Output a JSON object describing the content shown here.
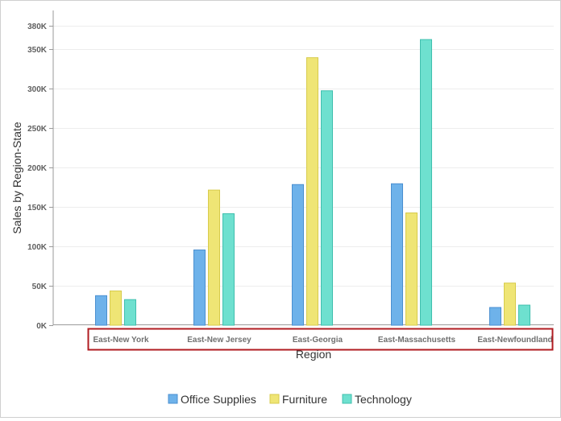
{
  "chart_data": {
    "type": "bar",
    "title": "",
    "xlabel": "Region",
    "ylabel": "Sales by Region-State",
    "categories": [
      "East-New York",
      "East-New Jersey",
      "East-Georgia",
      "East-Massachusetts",
      "East-Newfoundland"
    ],
    "series": [
      {
        "name": "Office Supplies",
        "color": "#6eb2ea",
        "stroke": "#4a8fd0",
        "values": [
          38000,
          96000,
          179000,
          180000,
          23000
        ]
      },
      {
        "name": "Furniture",
        "color": "#efe575",
        "stroke": "#d7cb4c",
        "values": [
          44000,
          172000,
          340000,
          143000,
          54000
        ]
      },
      {
        "name": "Technology",
        "color": "#6ee0cf",
        "stroke": "#40bfae",
        "values": [
          33000,
          142000,
          298000,
          363000,
          26000
        ]
      }
    ],
    "yticks": [
      "0K",
      "50K",
      "100K",
      "150K",
      "200K",
      "250K",
      "300K",
      "350K",
      "380K"
    ],
    "ytick_values": [
      0,
      50000,
      100000,
      150000,
      200000,
      250000,
      300000,
      350000,
      380000
    ],
    "ylim": [
      0,
      380000
    ],
    "grid": true,
    "legend_position": "bottom",
    "highlight_color": "#b01c22"
  }
}
